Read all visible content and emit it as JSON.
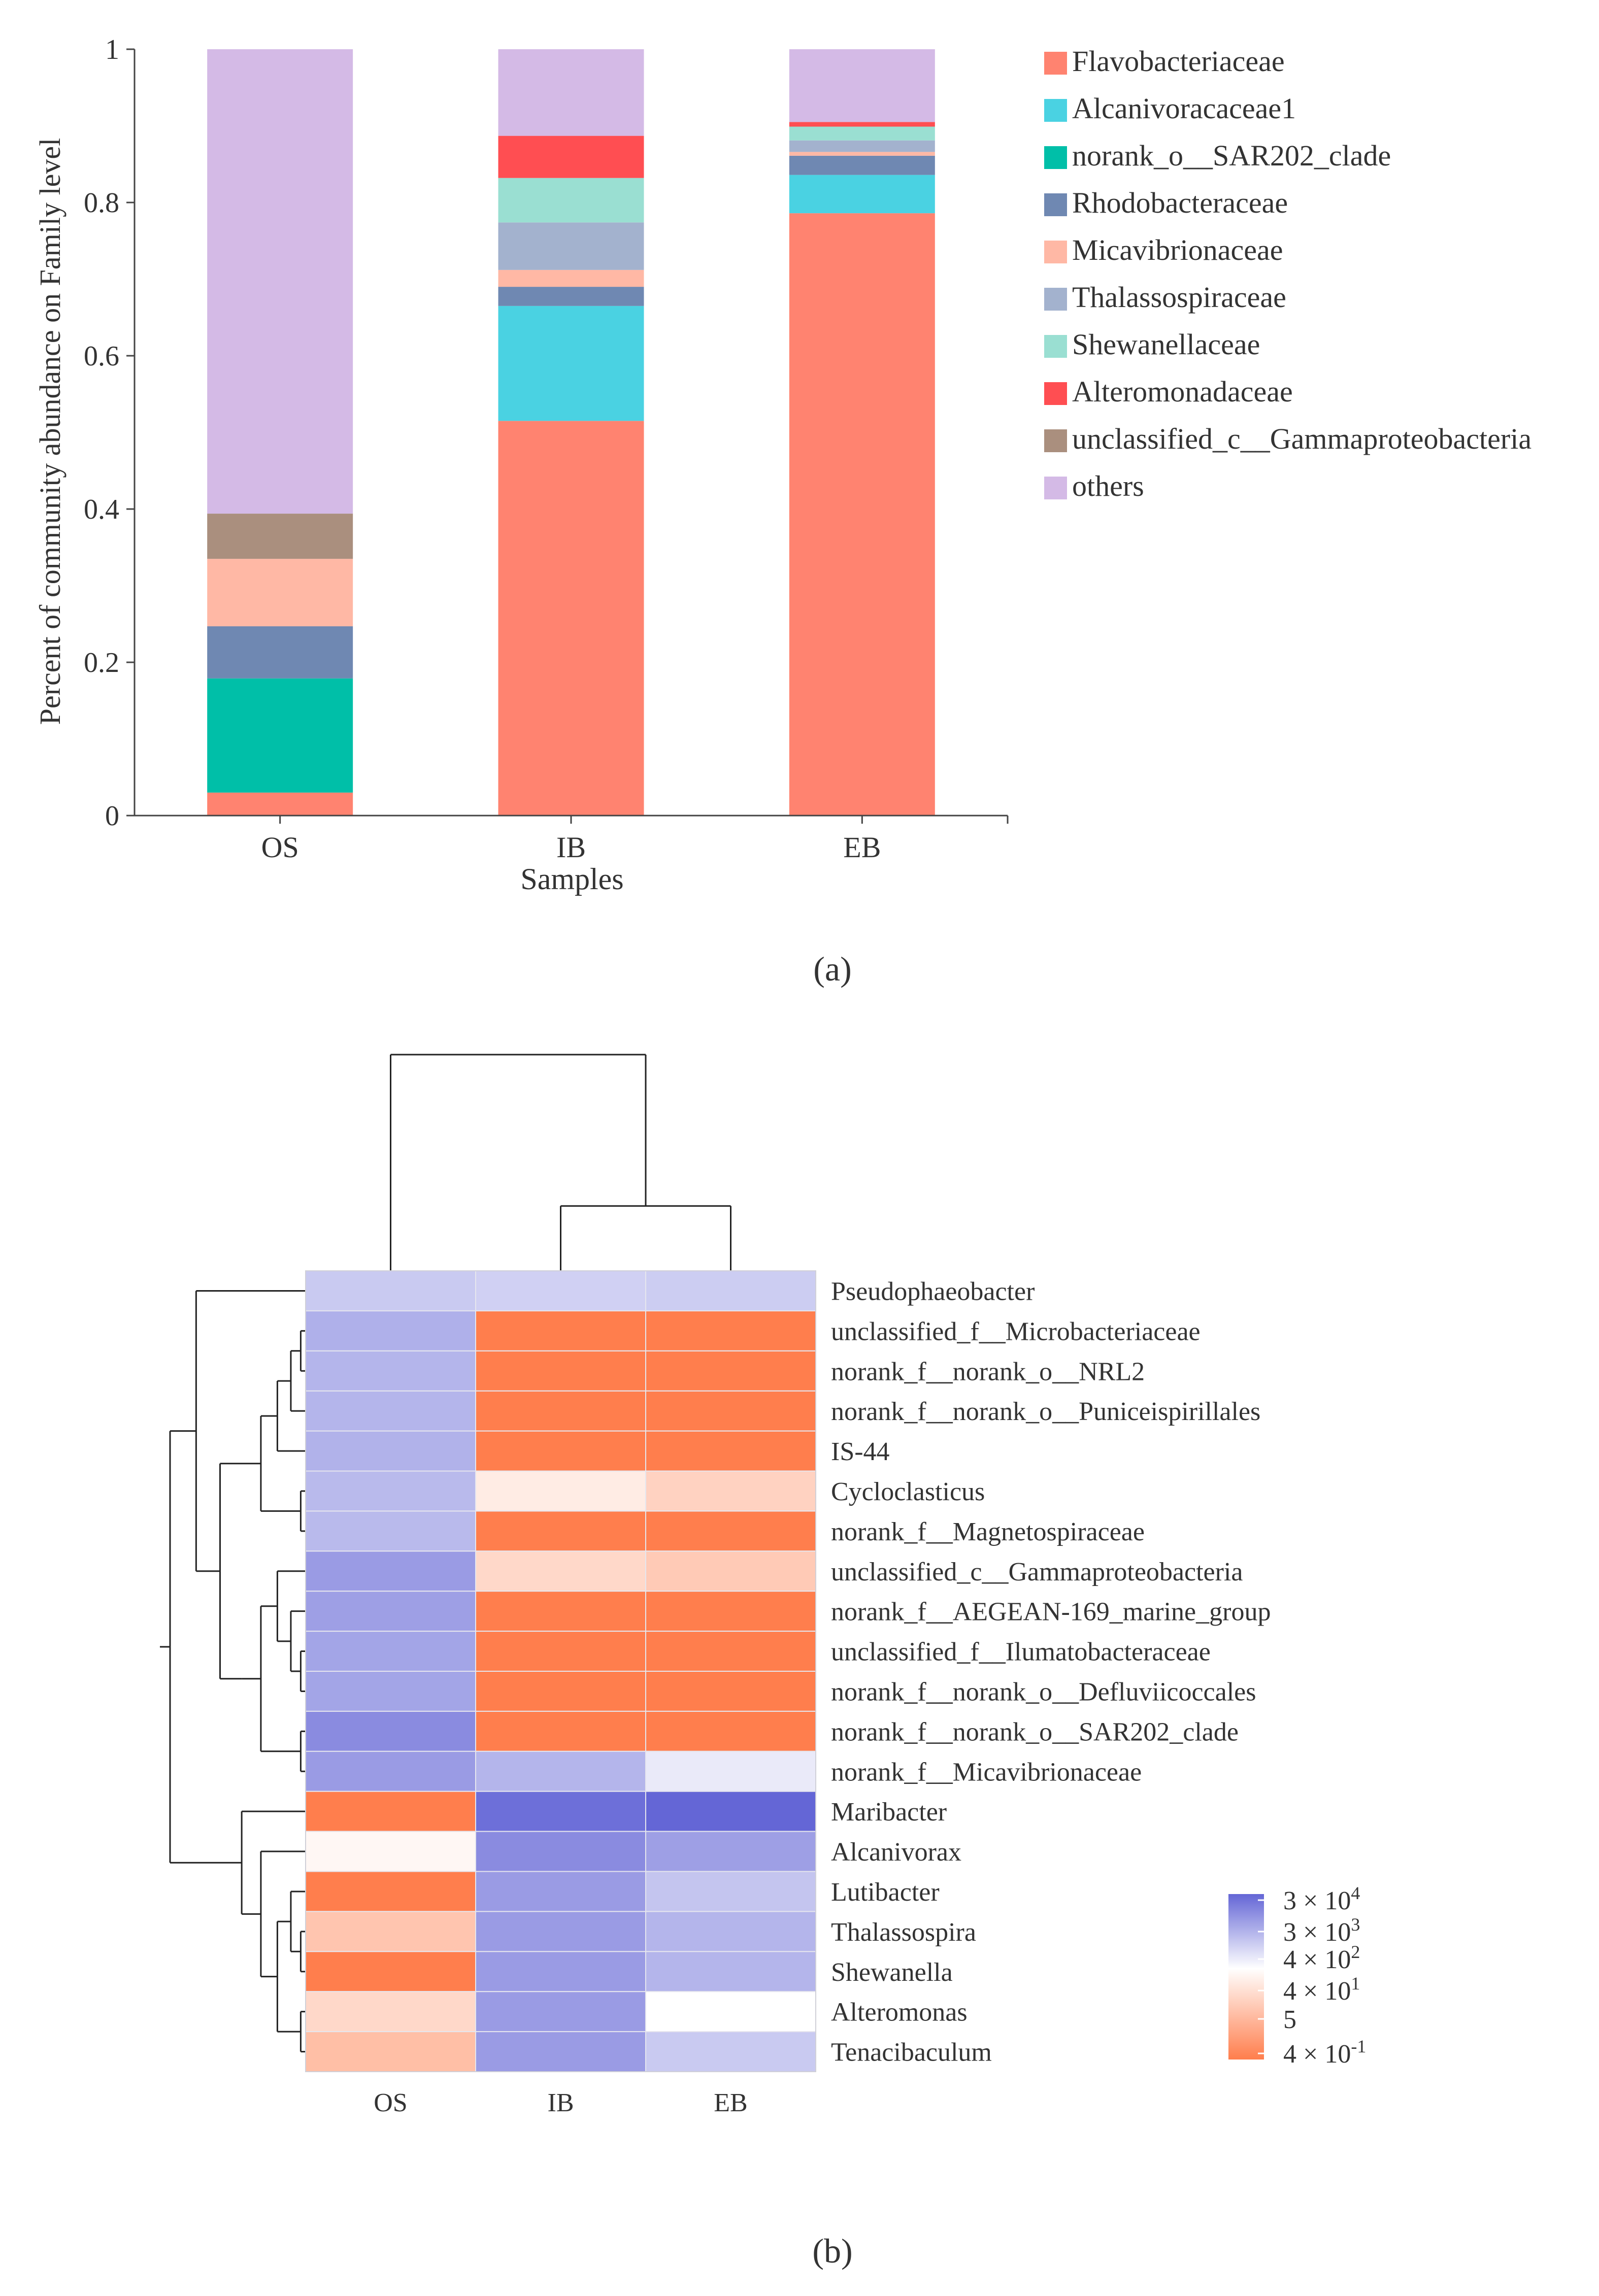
{
  "panel_labels": {
    "a": "(a)",
    "b": "(b)"
  },
  "colors": {
    "Flavobacteriaceae": "#FF8370",
    "Alcanivoracaceae1": "#4AD2E2",
    "norank_o__SAR202_clade": "#00BFA8",
    "Rhodobacteraceae": "#6F88B2",
    "Micavibrionaceae": "#FFB8A5",
    "Thalassospiraceae": "#A3B2CE",
    "Shewanellaceae": "#9ADFD2",
    "Alteromonadaceae": "#FF4E52",
    "unclassified_c__Gammaproteobacteria": "#AA8F7E",
    "others": "#D4BAE6",
    "heat_high": "#6466D6",
    "heat_mid": "#FFFFFF",
    "heat_low": "#FF7E4D"
  },
  "chart_data": [
    {
      "type": "bar",
      "stacked": true,
      "title": "",
      "xlabel": "Samples",
      "ylabel": "Percent of community abundance on Family level",
      "ylim": [
        0,
        1
      ],
      "yticks": [
        "0",
        "0.2",
        "0.4",
        "0.6",
        "0.8",
        "1"
      ],
      "categories": [
        "OS",
        "IB",
        "EB"
      ],
      "legend_position": "right",
      "series": [
        {
          "name": "Flavobacteriaceae",
          "values": [
            0.03,
            0.515,
            0.786
          ]
        },
        {
          "name": "Alcanivoracaceae1",
          "values": [
            0.0,
            0.15,
            0.05
          ]
        },
        {
          "name": "norank_o__SAR202_clade",
          "values": [
            0.149,
            0.0,
            0.0
          ]
        },
        {
          "name": "Rhodobacteraceae",
          "values": [
            0.068,
            0.025,
            0.025
          ]
        },
        {
          "name": "Micavibrionaceae",
          "values": [
            0.088,
            0.022,
            0.005
          ]
        },
        {
          "name": "Thalassospiraceae",
          "values": [
            0.0,
            0.062,
            0.015
          ]
        },
        {
          "name": "Shewanellaceae",
          "values": [
            0.0,
            0.058,
            0.018
          ]
        },
        {
          "name": "Alteromonadaceae",
          "values": [
            0.0,
            0.055,
            0.006
          ]
        },
        {
          "name": "unclassified_c__Gammaproteobacteria",
          "values": [
            0.059,
            0.0,
            0.0
          ]
        },
        {
          "name": "others",
          "values": [
            0.606,
            0.113,
            0.095
          ]
        }
      ]
    },
    {
      "type": "heatmap",
      "title": "",
      "columns": [
        "OS",
        "IB",
        "EB"
      ],
      "rows": [
        "Pseudophaeobacter",
        "unclassified_f__Microbacteriaceae",
        "norank_f__norank_o__NRL2",
        "norank_f__norank_o__Puniceispirillales",
        "IS-44",
        "Cycloclasticus",
        "norank_f__Magnetospiraceae",
        "unclassified_c__Gammaproteobacteria",
        "norank_f__AEGEAN-169_marine_group",
        "unclassified_f__Ilumatobacteraceae",
        "norank_f__norank_o__Defluviicoccales",
        "norank_f__norank_o__SAR202_clade",
        "norank_f__Micavibrionaceae",
        "Maribacter",
        "Alcanivorax",
        "Lutibacter",
        "Thalassospira",
        "Shewanella",
        "Alteromonas",
        "Tenacibaculum"
      ],
      "values": [
        [
          400,
          300,
          350
        ],
        [
          1200,
          0.4,
          0.4
        ],
        [
          1000,
          0.4,
          0.4
        ],
        [
          1000,
          0.4,
          0.4
        ],
        [
          1100,
          0.4,
          0.4
        ],
        [
          800,
          20,
          8
        ],
        [
          800,
          0.4,
          0.4
        ],
        [
          3000,
          10,
          6
        ],
        [
          2500,
          0.4,
          0.4
        ],
        [
          2000,
          0.4,
          0.4
        ],
        [
          2000,
          0.4,
          0.4
        ],
        [
          6000,
          0.4,
          0.4
        ],
        [
          3000,
          1000,
          100
        ],
        [
          0.4,
          20000,
          30000
        ],
        [
          30,
          6000,
          2500
        ],
        [
          0.4,
          3000,
          500
        ],
        [
          5,
          3000,
          1000
        ],
        [
          0.4,
          3000,
          1000
        ],
        [
          10,
          3000,
          40
        ],
        [
          4,
          3000,
          400
        ]
      ],
      "scale": "log",
      "colorbar_labels": [
        {
          "mantissa": "3 × 10",
          "exp": "4",
          "value": 30000
        },
        {
          "mantissa": "3 × 10",
          "exp": "3",
          "value": 3000
        },
        {
          "mantissa": "4 × 10",
          "exp": "2",
          "value": 400
        },
        {
          "mantissa": "4 × 10",
          "exp": "1",
          "value": 40
        },
        {
          "mantissa": "5",
          "exp": "",
          "value": 5
        },
        {
          "mantissa": "4 × 10",
          "exp": "-1",
          "value": 0.4
        }
      ],
      "column_dendrogram": "(OS,(IB,EB))",
      "row_dendrogram": "((Pseudophaeobacter,(((((unclassified_f__Microbacteriaceae,norank_f__norank_o__NRL2),norank_f__norank_o__Puniceispirillales),IS-44),(Cycloclasticus,norank_f__Magnetospiraceae)),(((unclassified_c__Gammaproteobacteria,(norank_f__AEGEAN-169_marine_group,(unclassified_f__Ilumatobacteraceae,norank_f__norank_o__Defluviicoccales))),(norank_f__norank_o__SAR202_clade,norank_f__Micavibrionaceae))))),(Maribacter,(Alcanivorax,((Lutibacter,(Thalassospira,Shewanella)),(Alteromonas,Tenacibaculum)))))"
    }
  ]
}
